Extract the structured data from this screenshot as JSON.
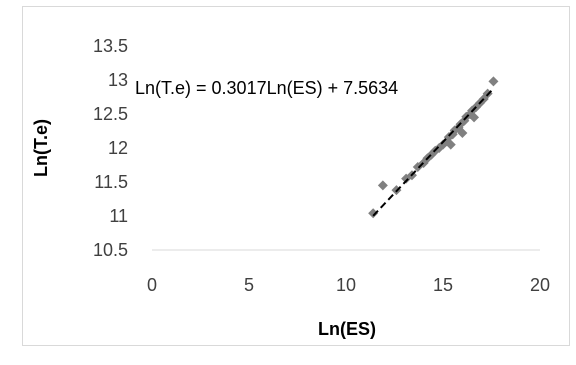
{
  "chart_data": {
    "type": "scatter",
    "title": "",
    "xlabel": "Ln(ES)",
    "ylabel": "Ln(T.e)",
    "xlim": [
      0,
      20
    ],
    "ylim": [
      10.5,
      13.5
    ],
    "x_ticks": [
      0,
      5,
      10,
      15,
      20
    ],
    "y_ticks": [
      10.5,
      11,
      11.5,
      12,
      12.5,
      13,
      13.5
    ],
    "x_tick_labels": [
      "0",
      "5",
      "10",
      "15",
      "20"
    ],
    "y_tick_labels": [
      "10.5",
      "11",
      "11.5",
      "12",
      "12.5",
      "13",
      "13.5"
    ],
    "grid": false,
    "marker_color": "#808080",
    "trendline_color": "#000000",
    "trendline": {
      "slope": 0.3017,
      "intercept": 7.5634,
      "x_range": [
        11.4,
        17.6
      ],
      "style": "dashed"
    },
    "annotation": "Ln(T.e) = 0.3017Ln(ES) + 7.5634",
    "points": [
      {
        "x": 11.4,
        "y": 11.04
      },
      {
        "x": 11.9,
        "y": 11.45
      },
      {
        "x": 12.6,
        "y": 11.38
      },
      {
        "x": 13.1,
        "y": 11.55
      },
      {
        "x": 13.4,
        "y": 11.6
      },
      {
        "x": 13.7,
        "y": 11.72
      },
      {
        "x": 14.0,
        "y": 11.78
      },
      {
        "x": 14.2,
        "y": 11.85
      },
      {
        "x": 14.4,
        "y": 11.9
      },
      {
        "x": 14.6,
        "y": 11.96
      },
      {
        "x": 14.8,
        "y": 12.0
      },
      {
        "x": 15.0,
        "y": 12.05
      },
      {
        "x": 15.2,
        "y": 12.1
      },
      {
        "x": 15.3,
        "y": 12.16
      },
      {
        "x": 15.5,
        "y": 12.2
      },
      {
        "x": 15.6,
        "y": 12.26
      },
      {
        "x": 15.8,
        "y": 12.3
      },
      {
        "x": 15.9,
        "y": 12.35
      },
      {
        "x": 16.1,
        "y": 12.4
      },
      {
        "x": 16.2,
        "y": 12.46
      },
      {
        "x": 16.4,
        "y": 12.5
      },
      {
        "x": 16.5,
        "y": 12.55
      },
      {
        "x": 16.7,
        "y": 12.6
      },
      {
        "x": 16.9,
        "y": 12.66
      },
      {
        "x": 17.1,
        "y": 12.72
      },
      {
        "x": 17.3,
        "y": 12.8
      },
      {
        "x": 17.6,
        "y": 12.98
      },
      {
        "x": 15.4,
        "y": 12.05
      },
      {
        "x": 16.0,
        "y": 12.22
      },
      {
        "x": 16.6,
        "y": 12.45
      }
    ]
  }
}
